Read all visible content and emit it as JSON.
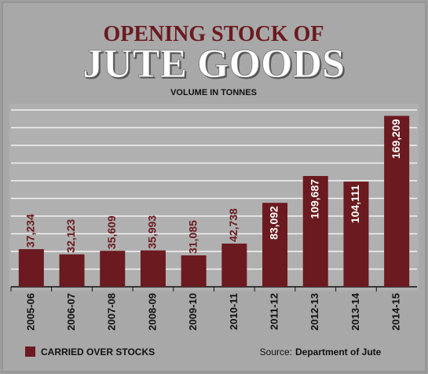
{
  "chart_data": {
    "type": "bar",
    "title_line1": "OPENING STOCK OF",
    "title_line2": "JUTE GOODS",
    "subtitle": "VOLUME IN TONNES",
    "categories": [
      "2005-06",
      "2006-07",
      "2007-08",
      "2008-09",
      "2009-10",
      "2010-11",
      "2011-12",
      "2012-13",
      "2013-14",
      "2014-15"
    ],
    "series": [
      {
        "name": "CARRIED OVER STOCKS",
        "color": "#6b1a1f",
        "values": [
          37234,
          32123,
          35609,
          35993,
          31085,
          42738,
          83092,
          109687,
          104111,
          169209
        ],
        "value_labels": [
          "37,234",
          "32,123",
          "35,609",
          "35,993",
          "31,085",
          "42,738",
          "83,092",
          "109,687",
          "104,111",
          "169,209"
        ]
      }
    ],
    "ylim": [
      0,
      175000
    ],
    "grid": true,
    "source_prefix": "Source:",
    "source": "Department of Jute"
  }
}
